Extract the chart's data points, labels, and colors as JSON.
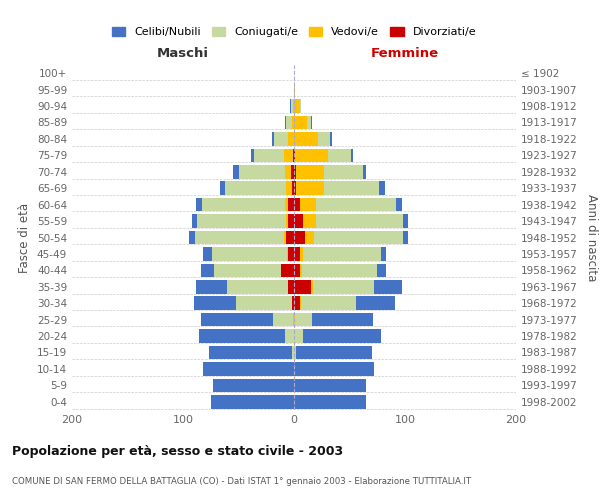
{
  "age_groups": [
    "0-4",
    "5-9",
    "10-14",
    "15-19",
    "20-24",
    "25-29",
    "30-34",
    "35-39",
    "40-44",
    "45-49",
    "50-54",
    "55-59",
    "60-64",
    "65-69",
    "70-74",
    "75-79",
    "80-84",
    "85-89",
    "90-94",
    "95-99",
    "100+"
  ],
  "birth_years": [
    "1998-2002",
    "1993-1997",
    "1988-1992",
    "1983-1987",
    "1978-1982",
    "1973-1977",
    "1968-1972",
    "1963-1967",
    "1958-1962",
    "1953-1957",
    "1948-1952",
    "1943-1947",
    "1938-1942",
    "1933-1937",
    "1928-1932",
    "1923-1927",
    "1918-1922",
    "1913-1917",
    "1908-1912",
    "1903-1907",
    "≤ 1902"
  ],
  "maschi": {
    "celibi": [
      75,
      73,
      82,
      75,
      78,
      65,
      38,
      28,
      12,
      8,
      6,
      5,
      5,
      5,
      5,
      3,
      2,
      1,
      1,
      0,
      0
    ],
    "coniugati": [
      0,
      0,
      0,
      2,
      8,
      18,
      50,
      55,
      60,
      68,
      80,
      80,
      75,
      55,
      42,
      27,
      13,
      5,
      2,
      0,
      0
    ],
    "vedovi": [
      0,
      0,
      0,
      0,
      0,
      1,
      0,
      0,
      0,
      1,
      2,
      2,
      3,
      5,
      5,
      8,
      5,
      2,
      1,
      0,
      0
    ],
    "divorziati": [
      0,
      0,
      0,
      0,
      0,
      0,
      2,
      5,
      12,
      5,
      7,
      5,
      5,
      2,
      3,
      1,
      0,
      0,
      0,
      0,
      0
    ]
  },
  "femmine": {
    "nubili": [
      65,
      65,
      72,
      68,
      70,
      55,
      35,
      25,
      8,
      5,
      5,
      5,
      5,
      5,
      3,
      2,
      2,
      1,
      0,
      0,
      0
    ],
    "coniugate": [
      0,
      0,
      0,
      2,
      8,
      15,
      50,
      55,
      68,
      70,
      80,
      78,
      72,
      50,
      35,
      20,
      10,
      3,
      1,
      0,
      0
    ],
    "vedove": [
      0,
      0,
      0,
      0,
      0,
      1,
      1,
      2,
      2,
      3,
      8,
      12,
      15,
      25,
      25,
      30,
      22,
      12,
      5,
      1,
      0
    ],
    "divorziate": [
      0,
      0,
      0,
      0,
      0,
      0,
      5,
      15,
      5,
      5,
      10,
      8,
      5,
      2,
      2,
      1,
      0,
      0,
      0,
      0,
      0
    ]
  },
  "colors": {
    "celibi": "#4472c4",
    "coniugati": "#c5d9a0",
    "vedovi": "#ffc000",
    "divorziati": "#cc0000"
  },
  "xlim": 200,
  "title": "Popolazione per età, sesso e stato civile - 2003",
  "subtitle": "COMUNE DI SAN FERMO DELLA BATTAGLIA (CO) - Dati ISTAT 1° gennaio 2003 - Elaborazione TUTTITALIA.IT",
  "ylabel": "Fasce di età",
  "ylabel_right": "Anni di nascita",
  "xlabel_maschi": "Maschi",
  "xlabel_femmine": "Femmine",
  "legend_labels": [
    "Celibi/Nubili",
    "Coniugati/e",
    "Vedovi/e",
    "Divorziati/e"
  ],
  "bg_color": "#ffffff",
  "grid_color": "#cccccc"
}
